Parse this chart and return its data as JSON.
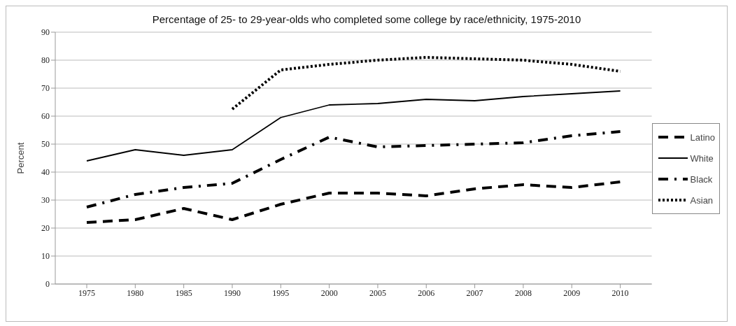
{
  "chart_data": {
    "type": "line",
    "title": "Percentage of 25- to 29-year-olds who completed some college by race/ethnicity, 1975-2010",
    "ylabel": "Percent",
    "categories": [
      "1975",
      "1980",
      "1985",
      "1990",
      "1995",
      "2000",
      "2005",
      "2006",
      "2007",
      "2008",
      "2009",
      "2010"
    ],
    "series": [
      {
        "name": "Latino",
        "color": "#000000",
        "line_style": "dashed",
        "values": [
          22,
          23,
          27,
          23,
          28.5,
          32.5,
          32.5,
          31.5,
          34,
          35.5,
          34.5,
          36.5
        ]
      },
      {
        "name": "White",
        "color": "#000000",
        "line_style": "solid",
        "values": [
          44,
          48,
          46,
          48,
          59.5,
          64,
          64.5,
          66,
          65.5,
          67,
          68,
          69
        ]
      },
      {
        "name": "Black",
        "color": "#000000",
        "line_style": "dashdot",
        "values": [
          27.5,
          32,
          34.5,
          36,
          44.5,
          52.5,
          49,
          49.5,
          50,
          50.5,
          53,
          54.5
        ]
      },
      {
        "name": "Asian",
        "color": "#000000",
        "line_style": "dotted",
        "values": [
          null,
          null,
          null,
          62.5,
          76.5,
          78.5,
          80,
          81,
          80.5,
          80,
          78.5,
          76
        ]
      }
    ],
    "ylim": [
      0,
      90
    ],
    "yticks": [
      0,
      10,
      20,
      30,
      40,
      50,
      60,
      70,
      80,
      90
    ],
    "grid": "y",
    "legend": "right",
    "marker": "none"
  }
}
